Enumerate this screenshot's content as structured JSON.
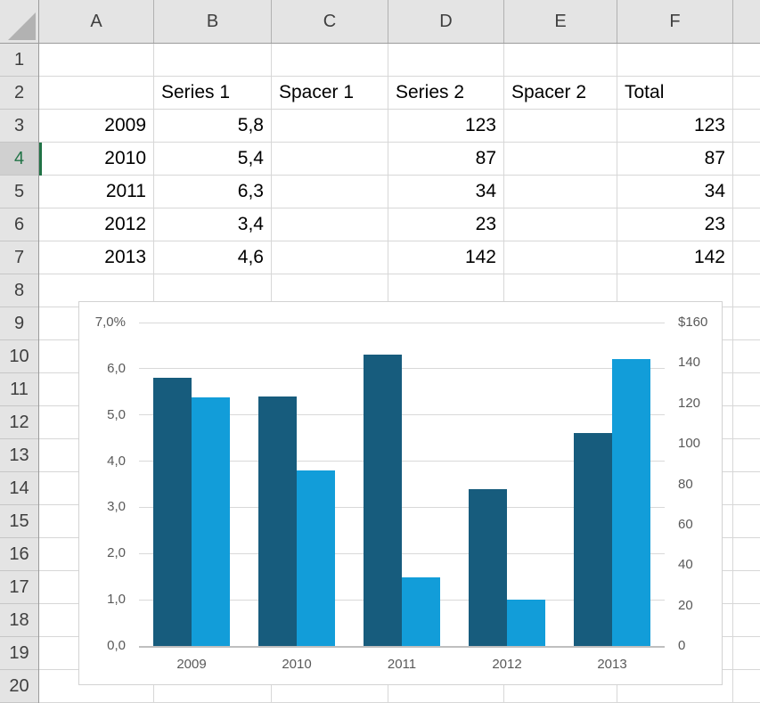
{
  "sheet": {
    "column_headers": [
      "A",
      "B",
      "C",
      "D",
      "E",
      "F"
    ],
    "row_headers": [
      "1",
      "2",
      "3",
      "4",
      "5",
      "6",
      "7",
      "8",
      "9",
      "10",
      "11",
      "12",
      "13",
      "14",
      "15",
      "16",
      "17",
      "18",
      "19",
      "20"
    ],
    "selected_row": "4",
    "cells": [
      {
        "ref": "B2",
        "value": "Series 1"
      },
      {
        "ref": "C2",
        "value": "Spacer 1"
      },
      {
        "ref": "D2",
        "value": "Series 2"
      },
      {
        "ref": "E2",
        "value": "Spacer 2"
      },
      {
        "ref": "F2",
        "value": "Total"
      },
      {
        "ref": "A3",
        "value": "2009"
      },
      {
        "ref": "B3",
        "value": "5,8"
      },
      {
        "ref": "D3",
        "value": "123"
      },
      {
        "ref": "F3",
        "value": "123"
      },
      {
        "ref": "A4",
        "value": "2010"
      },
      {
        "ref": "B4",
        "value": "5,4"
      },
      {
        "ref": "D4",
        "value": "87"
      },
      {
        "ref": "F4",
        "value": "87"
      },
      {
        "ref": "A5",
        "value": "2011"
      },
      {
        "ref": "B5",
        "value": "6,3"
      },
      {
        "ref": "D5",
        "value": "34"
      },
      {
        "ref": "F5",
        "value": "34"
      },
      {
        "ref": "A6",
        "value": "2012"
      },
      {
        "ref": "B6",
        "value": "3,4"
      },
      {
        "ref": "D6",
        "value": "23"
      },
      {
        "ref": "F6",
        "value": "23"
      },
      {
        "ref": "A7",
        "value": "2013"
      },
      {
        "ref": "B7",
        "value": "4,6"
      },
      {
        "ref": "D7",
        "value": "142"
      },
      {
        "ref": "F7",
        "value": "142"
      }
    ]
  },
  "chart_data": {
    "type": "bar",
    "title": "",
    "categories": [
      "2009",
      "2010",
      "2011",
      "2012",
      "2013"
    ],
    "series": [
      {
        "name": "Series 1",
        "axis": "left",
        "color": "#175C7D",
        "values": [
          5.8,
          5.4,
          6.3,
          3.4,
          4.6
        ]
      },
      {
        "name": "Series 2",
        "axis": "right",
        "color": "#129DD9",
        "values": [
          123,
          87,
          34,
          23,
          142
        ]
      }
    ],
    "left_axis": {
      "min": 0,
      "max": 7,
      "tick_labels_top_to_bottom": [
        "7,0%",
        "6,0",
        "5,0",
        "4,0",
        "3,0",
        "2,0",
        "1,0",
        "0,0"
      ]
    },
    "right_axis": {
      "min": 0,
      "max": 160,
      "tick_labels_top_to_bottom": [
        "$160",
        "140",
        "120",
        "100",
        "80",
        "60",
        "40",
        "20",
        "0"
      ]
    },
    "grid": true,
    "legend_position": "none"
  },
  "colors": {
    "header_bg": "#e4e4e4",
    "selected_header_bg": "#d0d0d0",
    "selection_green": "#217346",
    "gridline": "#d7d7d7",
    "chart_gridline": "#d9d9d9",
    "chart_text": "#595959",
    "series1_bar": "#175C7D",
    "series2_bar": "#129DD9"
  }
}
